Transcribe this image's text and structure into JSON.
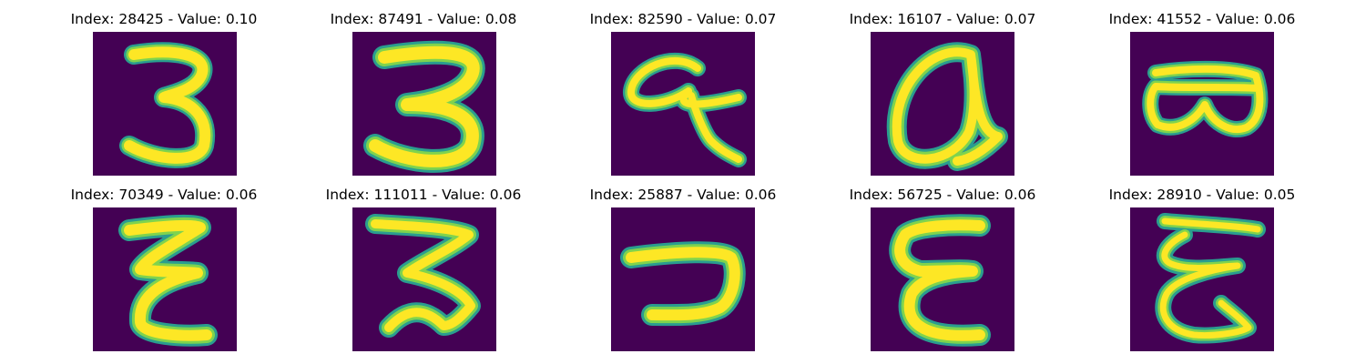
{
  "colors": {
    "background": "#440154",
    "stroke_outer": "#2a9d8f",
    "stroke_mid": "#7fd34e",
    "stroke_inner": "#fde725"
  },
  "panels": [
    {
      "title": "Index: 28425 - Value: 0.10",
      "glyph": "digit-3"
    },
    {
      "title": "Index: 87491 - Value: 0.08",
      "glyph": "digit-3-wide"
    },
    {
      "title": "Index: 82590 - Value: 0.07",
      "glyph": "loop-letter"
    },
    {
      "title": "Index: 16107 - Value: 0.07",
      "glyph": "letter-a"
    },
    {
      "title": "Index: 41552 - Value: 0.06",
      "glyph": "letter-b-sideways"
    },
    {
      "title": "Index: 70349 - Value: 0.06",
      "glyph": "letter-e"
    },
    {
      "title": "Index: 111011 - Value: 0.06",
      "glyph": "digit-3-tilted"
    },
    {
      "title": "Index: 25887 - Value: 0.06",
      "glyph": "hook-stroke"
    },
    {
      "title": "Index: 56725 - Value: 0.06",
      "glyph": "letter-e-round"
    },
    {
      "title": "Index: 28910 - Value: 0.05",
      "glyph": "letter-e-loop"
    }
  ]
}
